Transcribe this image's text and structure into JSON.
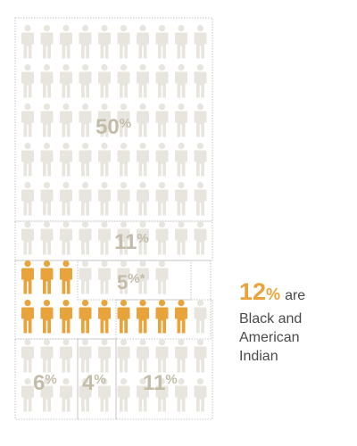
{
  "colors": {
    "person_default": "#e7e5de",
    "person_highlight": "#e8a33a",
    "value_label": "#c3bca8",
    "callout_value": "#e8a33a",
    "callout_text": "#4a4a4a",
    "group_border": "#b7b7b7"
  },
  "icon": "person-icon",
  "chart_data": {
    "type": "icon-array",
    "title": "",
    "total_icons": 100,
    "groups": [
      {
        "label": "50%",
        "value": 50,
        "highlighted": false
      },
      {
        "label": "11%",
        "value": 11,
        "highlighted": false
      },
      {
        "label": "5%*",
        "value": 5,
        "highlighted": false
      },
      {
        "label": "12%",
        "value": 12,
        "highlighted": true
      },
      {
        "label": "6%",
        "value": 6,
        "highlighted": false
      },
      {
        "label": "4%",
        "value": 4,
        "highlighted": false
      },
      {
        "label": "11%",
        "value": 11,
        "highlighted": false
      }
    ]
  },
  "callout": {
    "value": "12",
    "unit": "%",
    "suffix": "are",
    "text": "Black and\nAmerican\nIndian"
  }
}
